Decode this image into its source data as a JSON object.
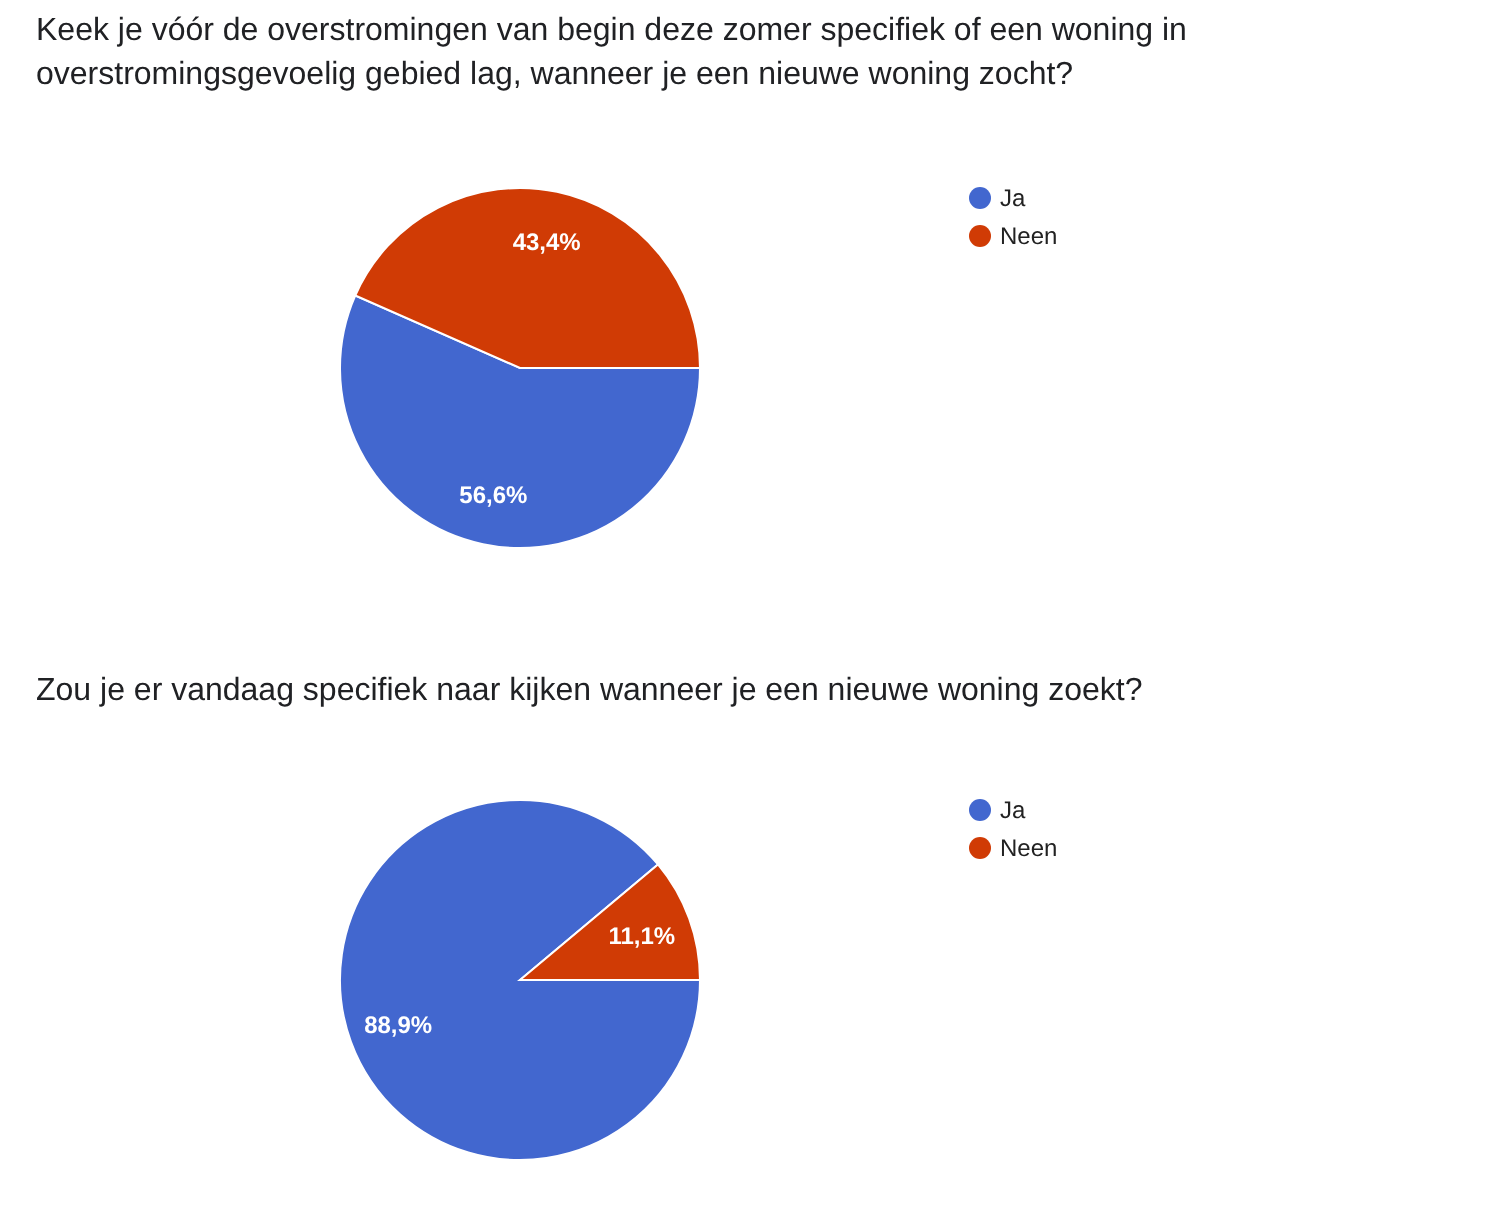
{
  "chart_data": [
    {
      "type": "pie",
      "title": "Keek je vóór de overstromingen van begin deze zomer specifiek of een woning in overstromingsgevoelig gebied lag, wanneer je een nieuwe woning zocht?",
      "categories": [
        "Ja",
        "Neen"
      ],
      "values": [
        56.6,
        43.4
      ],
      "colors": [
        "#4267cf",
        "#d03b05"
      ],
      "value_labels": [
        "56,6%",
        "43,4%"
      ],
      "legend": "right"
    },
    {
      "type": "pie",
      "title": "Zou je er vandaag specifiek naar kijken wanneer je een nieuwe woning zoekt?",
      "categories": [
        "Ja",
        "Neen"
      ],
      "values": [
        88.9,
        11.1
      ],
      "colors": [
        "#4267cf",
        "#d03b05"
      ],
      "value_labels": [
        "88,9%",
        "11,1%"
      ],
      "legend": "right"
    }
  ]
}
